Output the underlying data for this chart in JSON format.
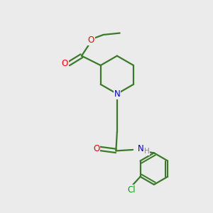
{
  "background_color": "#ebebeb",
  "bond_color": "#3a7a28",
  "atom_colors": {
    "O": "#ff0000",
    "N": "#0000cc",
    "Cl": "#00aa00",
    "H": "#888888",
    "C": "#3a7a28"
  },
  "line_width": 1.6,
  "figsize": [
    3.0,
    3.0
  ],
  "dpi": 100
}
